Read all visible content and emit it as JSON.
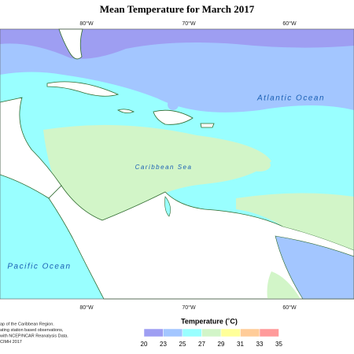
{
  "title": "Mean Temperature for March 2017",
  "map": {
    "lon_labels_top": [
      "80°W",
      "70°W",
      "60°W"
    ],
    "lon_labels_bottom": [
      "80°W",
      "70°W",
      "60°W"
    ],
    "water_labels": [
      "Atlantic Ocean",
      "Caribbean Sea",
      "Pacific Ocean"
    ]
  },
  "footnote": [
    "ap of the Caribbean Region.",
    "ating station based observations,",
    "with NCEP/NCAR Reanalysis Data.",
    "CIMH 2017"
  ],
  "legend": {
    "title": "Temperature (˚C)",
    "ticks": [
      "20",
      "23",
      "25",
      "27",
      "29",
      "31",
      "33",
      "35"
    ],
    "colors": [
      "#9e9ef2",
      "#a3c6ff",
      "#99ffff",
      "#d2f5c8",
      "#ffff99",
      "#ffcc99",
      "#ff9a9a"
    ]
  }
}
